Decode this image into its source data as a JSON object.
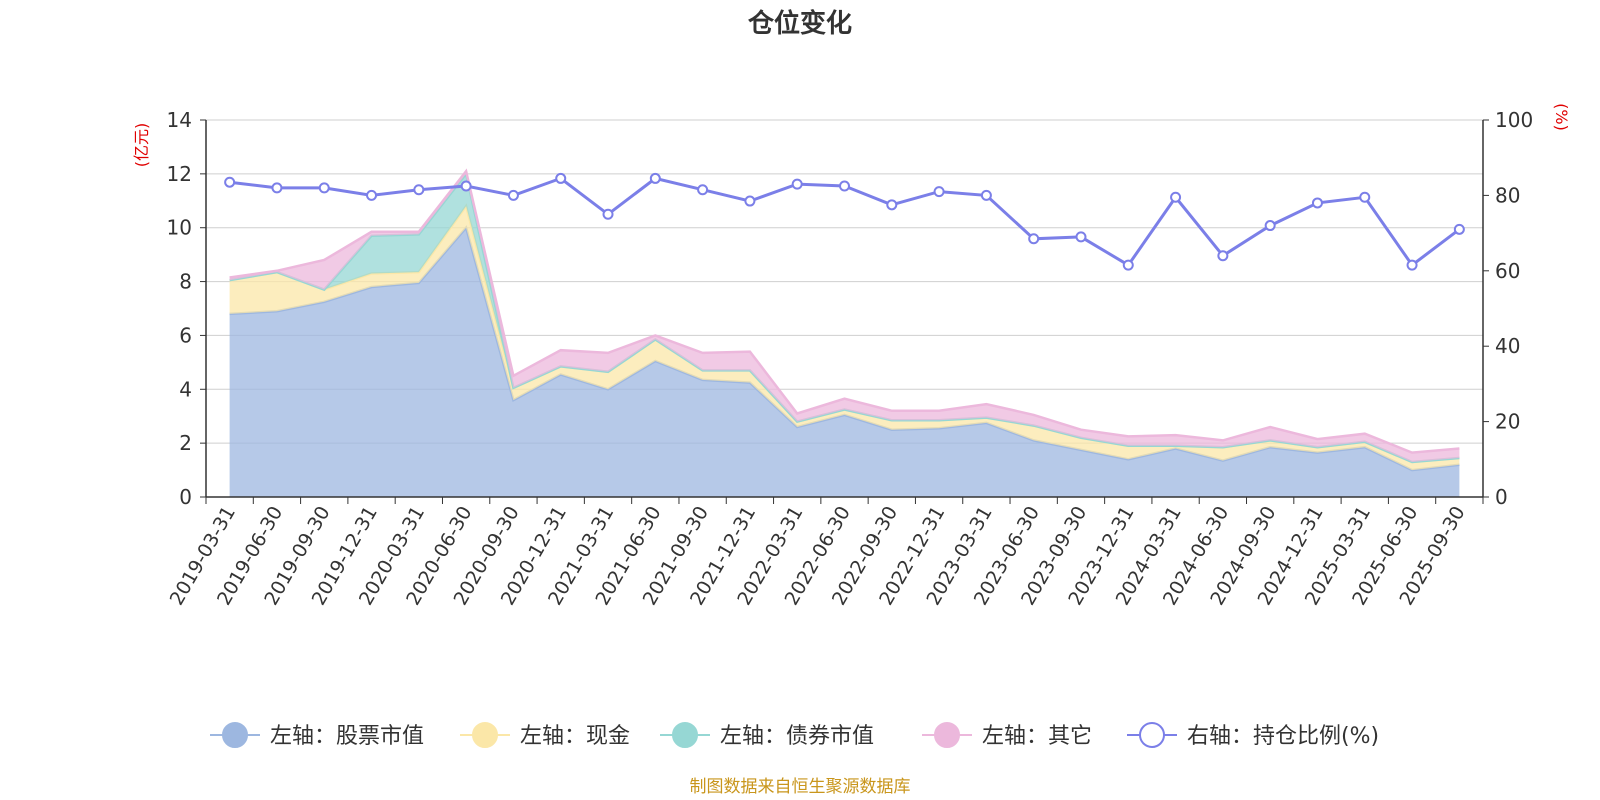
{
  "chart_data": {
    "type": "area",
    "title": "仓位变化",
    "source": "制图数据来自恒生聚源数据库",
    "left_axis": {
      "unit": "(亿元)",
      "range": [
        0,
        14
      ],
      "ticks": [
        0,
        2,
        4,
        6,
        8,
        10,
        12,
        14
      ]
    },
    "right_axis": {
      "unit": "(%)",
      "range": [
        0,
        100
      ],
      "ticks": [
        0,
        20,
        40,
        60,
        80,
        100
      ]
    },
    "categories": [
      "2019-03-31",
      "2019-06-30",
      "2019-09-30",
      "2019-12-31",
      "2020-03-31",
      "2020-06-30",
      "2020-09-30",
      "2020-12-31",
      "2021-03-31",
      "2021-06-30",
      "2021-09-30",
      "2021-12-31",
      "2022-03-31",
      "2022-06-30",
      "2022-09-30",
      "2022-12-31",
      "2023-03-31",
      "2023-06-30",
      "2023-09-30",
      "2023-12-31",
      "2024-03-31",
      "2024-06-30",
      "2024-09-30",
      "2024-12-31",
      "2025-03-31",
      "2025-06-30",
      "2025-09-30"
    ],
    "stacked_series": [
      {
        "name": "左轴：股票市值",
        "axis": "left",
        "color": "#9db7e0",
        "values": [
          6.8,
          6.9,
          7.25,
          7.8,
          7.95,
          10.0,
          3.6,
          4.55,
          4.0,
          5.05,
          4.35,
          4.25,
          2.6,
          3.05,
          2.5,
          2.55,
          2.75,
          2.1,
          1.75,
          1.4,
          1.8,
          1.35,
          1.85,
          1.65,
          1.85,
          1.0,
          1.2
        ]
      },
      {
        "name": "左轴：现金",
        "axis": "left",
        "color": "#fbe7a8",
        "values": [
          1.25,
          1.45,
          0.45,
          0.5,
          0.4,
          0.8,
          0.45,
          0.3,
          0.65,
          0.8,
          0.35,
          0.45,
          0.2,
          0.2,
          0.35,
          0.3,
          0.2,
          0.55,
          0.45,
          0.5,
          0.1,
          0.5,
          0.25,
          0.2,
          0.2,
          0.3,
          0.25
        ]
      },
      {
        "name": "左轴：债券市值",
        "axis": "left",
        "color": "#96d7d4",
        "values": [
          0,
          0,
          0,
          1.4,
          1.4,
          1.2,
          0,
          0,
          0,
          0,
          0,
          0,
          0,
          0,
          0,
          0,
          0,
          0,
          0,
          0,
          0,
          0,
          0,
          0,
          0,
          0,
          0
        ]
      },
      {
        "name": "左轴：其它",
        "axis": "left",
        "color": "#ecb8dc",
        "values": [
          0.1,
          0.05,
          1.1,
          0.15,
          0.1,
          0.1,
          0.45,
          0.6,
          0.7,
          0.15,
          0.65,
          0.7,
          0.3,
          0.4,
          0.35,
          0.35,
          0.5,
          0.4,
          0.3,
          0.35,
          0.4,
          0.25,
          0.5,
          0.3,
          0.3,
          0.35,
          0.35
        ]
      }
    ],
    "line_series": {
      "name": "右轴：持仓比例(%)",
      "axis": "right",
      "color": "#7b7fe8",
      "values": [
        83.5,
        82.0,
        82.0,
        80.0,
        81.5,
        82.5,
        80.0,
        84.5,
        75.0,
        84.5,
        81.5,
        78.5,
        83.0,
        82.5,
        77.5,
        81.0,
        80.0,
        68.5,
        69.0,
        61.5,
        79.5,
        64.0,
        72.0,
        78.0,
        79.5,
        61.5,
        71.0
      ]
    },
    "legend_position": "bottom"
  }
}
